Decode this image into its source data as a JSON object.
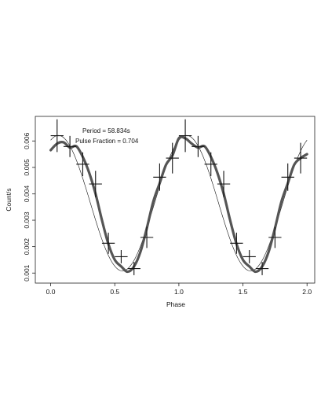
{
  "chart_data": {
    "type": "line",
    "title": "",
    "xlabel": "Phase",
    "ylabel": "Count/s",
    "xlim": [
      -0.12,
      2.06
    ],
    "ylim": [
      0.00062,
      0.00693
    ],
    "xticks": [
      0.0,
      0.5,
      1.0,
      1.5,
      2.0
    ],
    "xtick_labels": [
      "0.0",
      "0.5",
      "1.0",
      "1.5",
      "2.0"
    ],
    "yticks": [
      0.001,
      0.002,
      0.003,
      0.004,
      0.005,
      0.006
    ],
    "ytick_labels": [
      "0.001",
      "0.002",
      "0.003",
      "0.004",
      "0.005",
      "0.006"
    ],
    "grid": false,
    "annotations": [
      "Period = 58.834s",
      "Pulse Fraction = 0.704"
    ],
    "colors": {
      "points": "#111111",
      "smooth_curve": "#555555",
      "fit_curve": "#111111",
      "axes": "#222222"
    },
    "series": [
      {
        "kind": "errorbar",
        "x": [
          0.05,
          0.15,
          0.25,
          0.35,
          0.45,
          0.55,
          0.65,
          0.75,
          0.85,
          0.95,
          1.05,
          1.15,
          1.25,
          1.35,
          1.45,
          1.55,
          1.65,
          1.75,
          1.85,
          1.95
        ],
        "y": [
          0.0062,
          0.00579,
          0.00512,
          0.00437,
          0.00213,
          0.00162,
          0.00117,
          0.00235,
          0.00463,
          0.00535,
          0.0062,
          0.00579,
          0.00512,
          0.00437,
          0.00213,
          0.00162,
          0.00117,
          0.00235,
          0.00463,
          0.00535
        ],
        "xerr": [
          0.05,
          0.05,
          0.05,
          0.05,
          0.05,
          0.05,
          0.05,
          0.05,
          0.05,
          0.05,
          0.05,
          0.05,
          0.05,
          0.05,
          0.05,
          0.05,
          0.05,
          0.05,
          0.05,
          0.05
        ],
        "yerr": [
          0.00062,
          0.0004,
          0.00045,
          0.0005,
          0.0004,
          0.00025,
          0.00025,
          0.0004,
          0.00052,
          0.00058,
          0.00062,
          0.0004,
          0.00045,
          0.0005,
          0.0004,
          0.00025,
          0.00025,
          0.0004,
          0.00052,
          0.00058
        ]
      },
      {
        "kind": "smooth",
        "x": [
          0.0,
          0.05,
          0.1,
          0.15,
          0.2,
          0.25,
          0.3,
          0.35,
          0.4,
          0.45,
          0.5,
          0.55,
          0.6,
          0.65,
          0.7,
          0.75,
          0.8,
          0.85,
          0.9,
          0.95,
          1.0,
          1.05,
          1.1,
          1.15,
          1.2,
          1.25,
          1.3,
          1.35,
          1.4,
          1.45,
          1.5,
          1.55,
          1.6,
          1.65,
          1.7,
          1.75,
          1.8,
          1.85,
          1.9,
          1.95,
          2.0
        ],
        "y": [
          0.00565,
          0.0059,
          0.00595,
          0.00575,
          0.0058,
          0.0054,
          0.0048,
          0.004,
          0.003,
          0.0021,
          0.0015,
          0.00125,
          0.00105,
          0.00125,
          0.0018,
          0.0027,
          0.0037,
          0.0044,
          0.0051,
          0.00545,
          0.0061,
          0.0061,
          0.0059,
          0.00575,
          0.0058,
          0.0054,
          0.0048,
          0.004,
          0.003,
          0.0021,
          0.0015,
          0.00125,
          0.00105,
          0.00125,
          0.0018,
          0.0027,
          0.0037,
          0.0044,
          0.0051,
          0.00535,
          0.0055
        ]
      },
      {
        "kind": "fit",
        "mean": 0.003645,
        "amplitude": 0.002565,
        "phase_of_max": 0.06
      }
    ]
  }
}
